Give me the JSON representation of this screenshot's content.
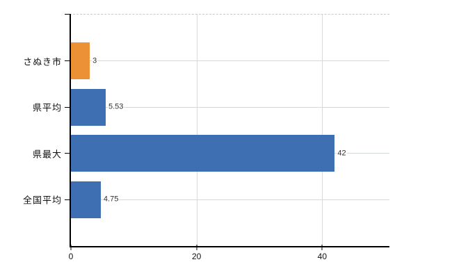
{
  "chart_data": {
    "type": "bar",
    "orientation": "horizontal",
    "title": "",
    "xlabel": "",
    "ylabel": "",
    "categories": [
      "さぬき市",
      "県平均",
      "県最大",
      "全国平均"
    ],
    "values": [
      3,
      5.53,
      42,
      4.75
    ],
    "value_labels": [
      "3",
      "5.53",
      "42",
      "4.75"
    ],
    "bar_colors": [
      "#ED9136",
      "#3E6FB2",
      "#3E6FB2",
      "#3E6FB2"
    ],
    "xlim": [
      0,
      50.7
    ],
    "xticks": [
      0,
      20,
      40
    ],
    "grid": "on",
    "legend": "none",
    "styles": {
      "background": "#FFFFFF",
      "axis_color": "#000000",
      "vgrid_color": "#D9D9D9",
      "hgrid_color": "#D4DAD4",
      "top_border_color": "#C9C9C9",
      "value_label_color": "#303030",
      "tick_label_color": "#111111"
    }
  }
}
